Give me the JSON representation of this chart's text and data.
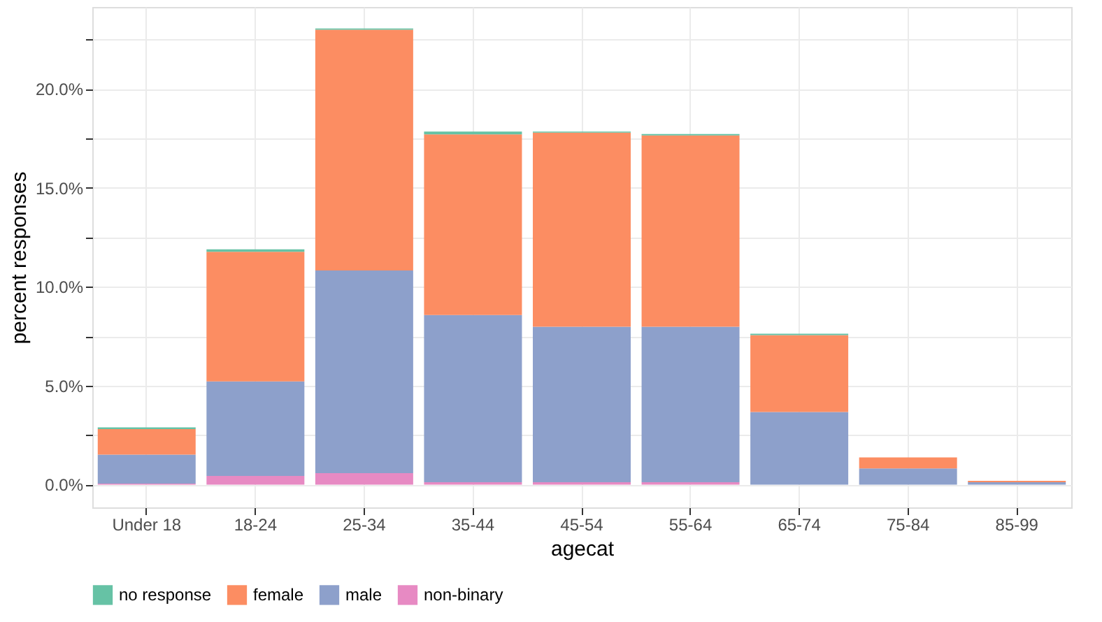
{
  "chart_data": {
    "type": "bar",
    "stacked": true,
    "xlabel": "agecat",
    "ylabel": "percent responses",
    "legend": "bottom",
    "grid": true,
    "categories": [
      "Under 18",
      "18-24",
      "25-34",
      "35-44",
      "45-54",
      "55-64",
      "65-74",
      "75-84",
      "85-99"
    ],
    "series": [
      {
        "name": "non-binary",
        "color": "#e78ac3",
        "values": [
          0.05,
          0.44,
          0.58,
          0.12,
          0.12,
          0.12,
          0,
          0,
          0
        ]
      },
      {
        "name": "male",
        "color": "#8da0cb",
        "values": [
          1.47,
          4.78,
          10.25,
          8.46,
          7.86,
          7.86,
          3.67,
          0.82,
          0.12
        ]
      },
      {
        "name": "female",
        "color": "#fc8d62",
        "values": [
          1.29,
          6.55,
          12.17,
          9.13,
          9.82,
          9.68,
          3.89,
          0.56,
          0.07
        ]
      },
      {
        "name": "no response",
        "color": "#66c2a5",
        "values": [
          0.09,
          0.13,
          0.06,
          0.14,
          0.05,
          0.07,
          0.07,
          0,
          0
        ]
      }
    ],
    "ylim": [
      -1.15,
      24.15
    ],
    "yticks": [
      {
        "value": 0,
        "label": "0.0%"
      },
      {
        "value": 2.5,
        "label": null
      },
      {
        "value": 5,
        "label": "5.0%"
      },
      {
        "value": 7.5,
        "label": null
      },
      {
        "value": 10,
        "label": "10.0%"
      },
      {
        "value": 12.5,
        "label": null
      },
      {
        "value": 15,
        "label": "15.0%"
      },
      {
        "value": 17.5,
        "label": null
      },
      {
        "value": 20,
        "label": "20.0%"
      },
      {
        "value": 22.5,
        "label": null
      }
    ]
  }
}
